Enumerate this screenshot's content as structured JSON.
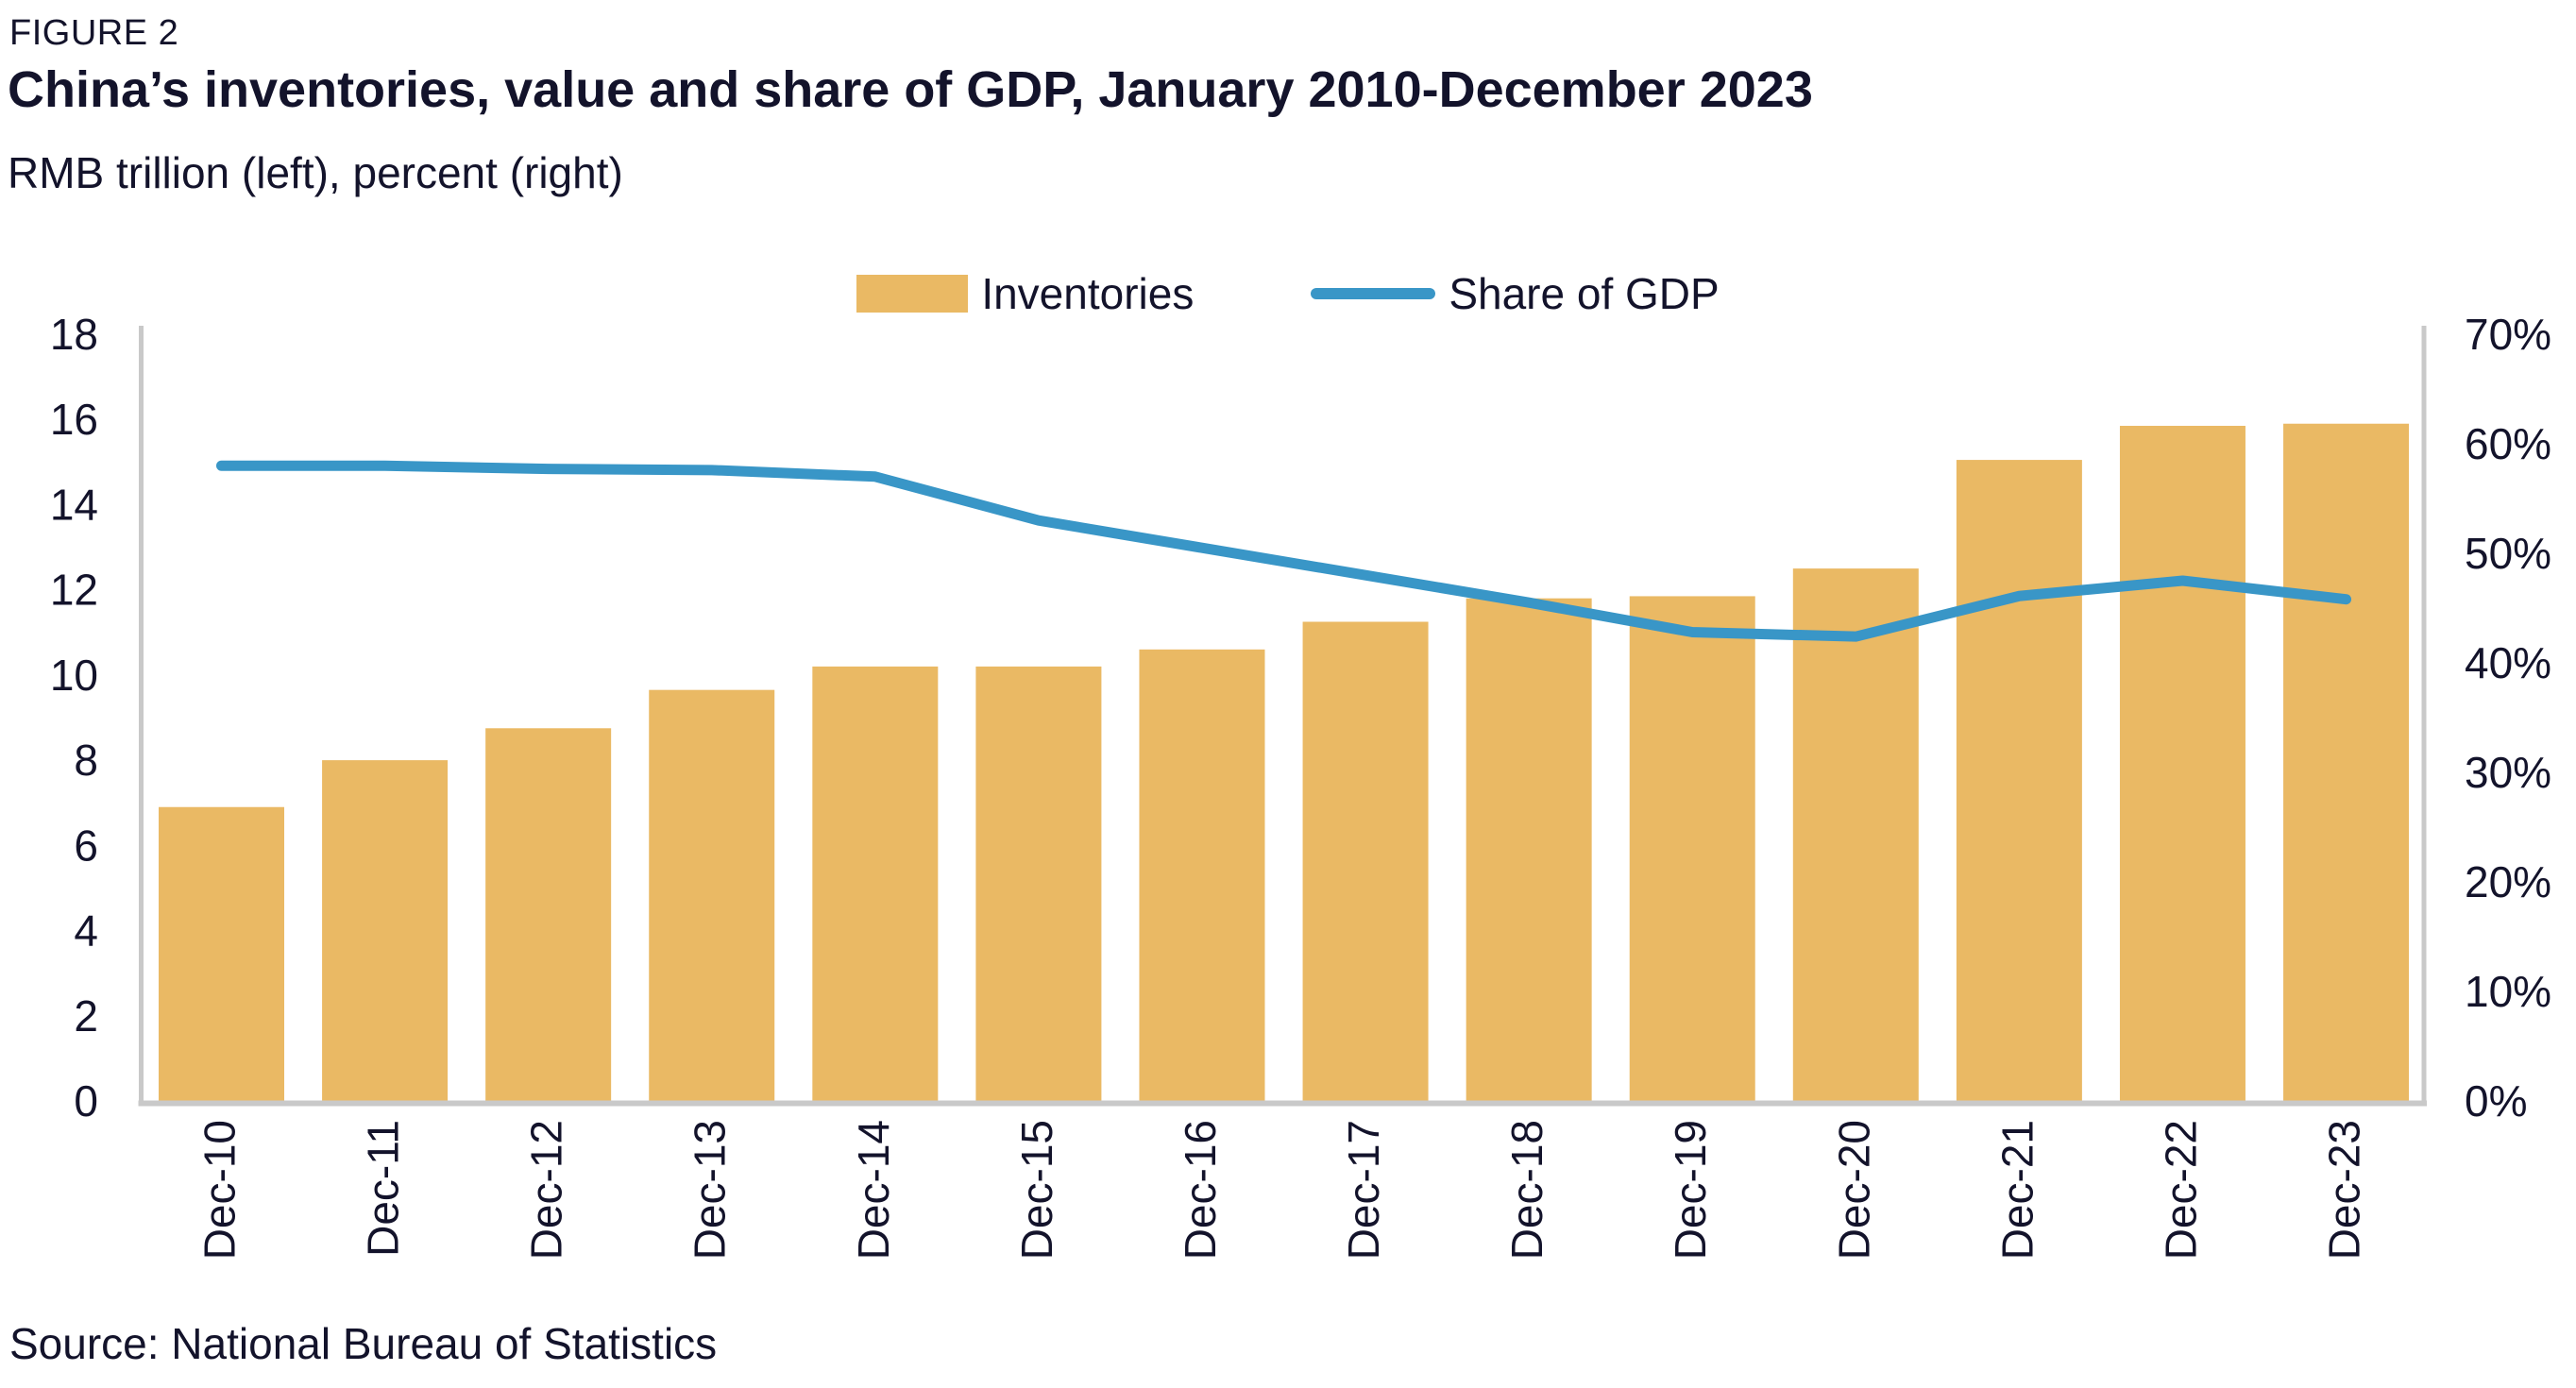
{
  "figure_label": "FIGURE 2",
  "title": "China’s inventories, value and share of GDP, January 2010-December 2023",
  "subtitle": "RMB trillion (left), percent (right)",
  "source": "Source: National Bureau of Statistics",
  "legend": {
    "inventories_label": "Inventories",
    "share_label": "Share of GDP"
  },
  "colors": {
    "bar": "#EAB964",
    "line": "#3996C7",
    "text": "#13132B",
    "axis": "#C9C9C9"
  },
  "chart_data": {
    "type": "bar+line",
    "title": "China’s inventories, value and share of GDP, January 2010-December 2023",
    "categories": [
      "Dec-10",
      "Dec-11",
      "Dec-12",
      "Dec-13",
      "Dec-14",
      "Dec-15",
      "Dec-16",
      "Dec-17",
      "Dec-18",
      "Dec-19",
      "Dec-20",
      "Dec-21",
      "Dec-22",
      "Dec-23"
    ],
    "series": [
      {
        "name": "Inventories",
        "type": "bar",
        "axis": "left",
        "unit": "RMB trillion",
        "values": [
          6.9,
          8.0,
          8.75,
          9.65,
          10.2,
          10.2,
          10.6,
          11.25,
          11.8,
          11.85,
          12.5,
          15.05,
          15.85,
          15.9
        ]
      },
      {
        "name": "Share of GDP",
        "type": "line",
        "axis": "right",
        "unit": "percent",
        "values": [
          58,
          58,
          57.7,
          57.6,
          57.0,
          53.0,
          50.5,
          48.0,
          45.5,
          42.8,
          42.4,
          46.1,
          47.5,
          45.8
        ]
      }
    ],
    "left_axis": {
      "min": 0,
      "max": 18,
      "tick_step": 2,
      "tick_labels": [
        "0",
        "2",
        "4",
        "6",
        "8",
        "10",
        "12",
        "14",
        "16",
        "18"
      ]
    },
    "right_axis": {
      "min": 0,
      "max": 70,
      "tick_step": 10,
      "tick_labels": [
        "0%",
        "10%",
        "20%",
        "30%",
        "40%",
        "50%",
        "60%",
        "70%"
      ]
    },
    "grid": false,
    "legend_position": "top-center"
  }
}
